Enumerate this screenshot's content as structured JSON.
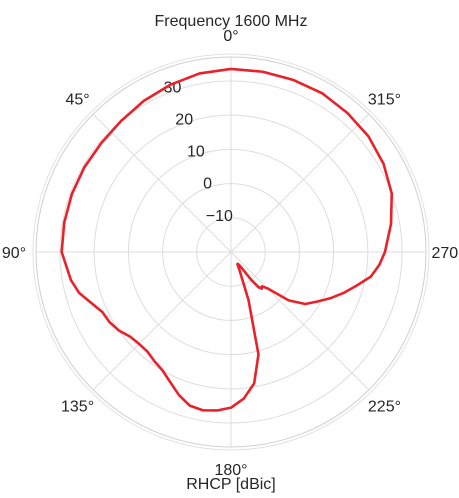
{
  "chart_data": {
    "type": "line",
    "projection": "polar",
    "title": "Frequency 1600 MHz",
    "xlabel": "RHCP [dBic]",
    "theta_direction": "counterclockwise",
    "theta_zero": "top",
    "theta_tick_labels": [
      "0°",
      "45°",
      "90°",
      "135°",
      "180°",
      "225°",
      "270°",
      "315°"
    ],
    "theta_tick_values": [
      0,
      45,
      90,
      135,
      180,
      225,
      270,
      315
    ],
    "r_ticks": [
      -10,
      0,
      10,
      20,
      30
    ],
    "r_tick_labels": [
      "−10",
      "0",
      "10",
      "20",
      "30"
    ],
    "r_tick_label_angle": 20,
    "rlim": [
      -20,
      37
    ],
    "grid": true,
    "series": [
      {
        "color": "#e8222a",
        "theta": [
          0,
          10,
          20,
          30,
          40,
          50,
          60,
          70,
          80,
          90,
          100,
          105,
          110,
          115,
          120,
          125,
          130,
          135,
          140,
          145,
          150,
          155,
          160,
          165,
          170,
          175,
          180,
          185,
          190,
          195,
          200,
          205,
          208,
          210,
          213,
          216,
          218,
          220,
          222,
          225,
          230,
          235,
          240,
          245,
          250,
          255,
          260,
          265,
          270,
          280,
          290,
          300,
          310,
          320,
          330,
          340,
          350,
          360
        ],
        "r": [
          33.5,
          33,
          32,
          31,
          30,
          29.5,
          29.5,
          29.5,
          29.5,
          29.5,
          27.5,
          26,
          23.5,
          21.5,
          21,
          20,
          18.5,
          18,
          18,
          19,
          20,
          22,
          24.5,
          26.5,
          27,
          26.5,
          25.5,
          23,
          19,
          11,
          -5,
          -14,
          -16,
          -16,
          -15,
          -10,
          -7,
          -6,
          -6.5,
          -5,
          2,
          6.5,
          9,
          12,
          15,
          18,
          21.5,
          23.5,
          25,
          27.5,
          30,
          31.5,
          32.5,
          33,
          33.5,
          33.5,
          33.5,
          33.5
        ]
      }
    ]
  }
}
